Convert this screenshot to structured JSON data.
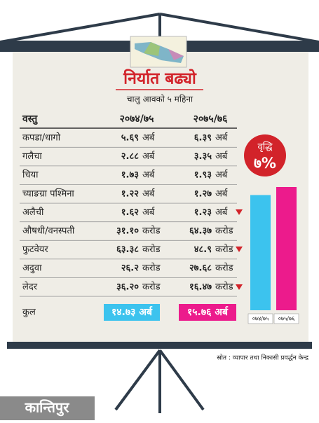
{
  "header": {
    "title": "निर्यात बढ्यो",
    "subtitle": "चालु आवको ५ महिना"
  },
  "table": {
    "headers": [
      "वस्तु",
      "२०७४/७५",
      "२०७५/७६"
    ],
    "rows": [
      [
        "कपडा/धागो",
        "५.६९",
        "अर्ब",
        "६.३९",
        "अर्ब"
      ],
      [
        "गलैचा",
        "२.८८",
        "अर्ब",
        "३.३५",
        "अर्ब"
      ],
      [
        "चिया",
        "१.७३",
        "अर्ब",
        "१.९३",
        "अर्ब"
      ],
      [
        "च्याङग्रा पश्मिना",
        "१.२२",
        "अर्ब",
        "१.२७",
        "अर्ब"
      ],
      [
        "अलैची",
        "१.६२",
        "अर्ब",
        "१.२३",
        "अर्ब"
      ],
      [
        "औषधी/वनस्पती",
        "३१.१०",
        "करोड",
        "६४.३७",
        "करोड"
      ],
      [
        "फुटवेयर",
        "६३.३८",
        "करोड",
        "४८.९",
        "करोड"
      ],
      [
        "अदुवा",
        "२६.२",
        "करोड",
        "२७.६८",
        "करोड"
      ],
      [
        "लेदर",
        "३६.२०",
        "करोड",
        "१६.४७",
        "करोड"
      ]
    ],
    "total": [
      "कुल",
      "१४.७३ अर्ब",
      "१५.७६ अर्ब"
    ]
  },
  "growth": {
    "label": "वृद्धि",
    "value": "७%"
  },
  "bars": {
    "labels": [
      "०७४/७५",
      "०७५/७६"
    ],
    "values": [
      14.73,
      15.76
    ],
    "colors": [
      "#3cc3ee",
      "#ec1b8c"
    ]
  },
  "source": "स्रोत : व्यापार तथा निकासी प्रवर्द्धन केन्द्र",
  "logo": "कान्तिपुर"
}
